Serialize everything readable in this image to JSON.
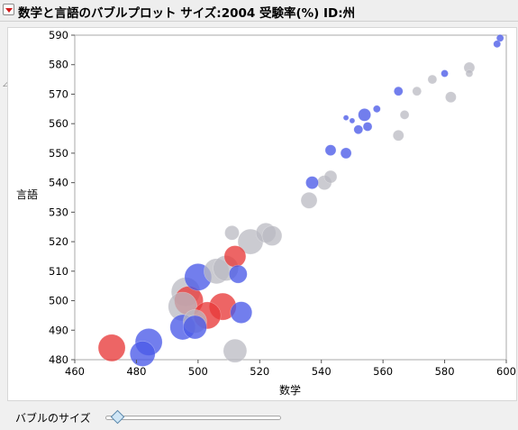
{
  "header": {
    "title": "数学と言語のバブルプロット サイズ:2004 受験率(%)  ID:州"
  },
  "controls": {
    "bubble_size_label": "バブルのサイズ",
    "bubble_size_level": 0.06
  },
  "colors": {
    "red": "#e83a3a",
    "blue": "#4a5ae8",
    "gray": "#b9b9c2"
  },
  "chart_data": {
    "type": "scatter",
    "title": "数学と言語のバブルプロット サイズ:2004 受験率(%)  ID:州",
    "xlabel": "数学",
    "ylabel": "言語",
    "xlim": [
      460,
      600
    ],
    "ylim": [
      480,
      590
    ],
    "xticks": [
      460,
      480,
      500,
      520,
      540,
      560,
      580,
      600
    ],
    "yticks": [
      480,
      490,
      500,
      510,
      520,
      530,
      540,
      550,
      560,
      570,
      580,
      590
    ],
    "grid": false,
    "size_variable": "2004 受験率(%)",
    "points": [
      {
        "x": 598,
        "y": 589,
        "size": 4,
        "color": "blue"
      },
      {
        "x": 597,
        "y": 587,
        "size": 4,
        "color": "blue"
      },
      {
        "x": 588,
        "y": 579,
        "size": 6,
        "color": "gray"
      },
      {
        "x": 588,
        "y": 577,
        "size": 4,
        "color": "gray"
      },
      {
        "x": 580,
        "y": 577,
        "size": 4,
        "color": "blue"
      },
      {
        "x": 576,
        "y": 575,
        "size": 5,
        "color": "gray"
      },
      {
        "x": 582,
        "y": 569,
        "size": 6,
        "color": "gray"
      },
      {
        "x": 571,
        "y": 571,
        "size": 5,
        "color": "gray"
      },
      {
        "x": 565,
        "y": 571,
        "size": 5,
        "color": "blue"
      },
      {
        "x": 567,
        "y": 563,
        "size": 5,
        "color": "gray"
      },
      {
        "x": 558,
        "y": 565,
        "size": 4,
        "color": "blue"
      },
      {
        "x": 554,
        "y": 563,
        "size": 7,
        "color": "blue"
      },
      {
        "x": 548,
        "y": 562,
        "size": 3,
        "color": "blue"
      },
      {
        "x": 550,
        "y": 561,
        "size": 3,
        "color": "blue"
      },
      {
        "x": 552,
        "y": 558,
        "size": 5,
        "color": "blue"
      },
      {
        "x": 555,
        "y": 559,
        "size": 5,
        "color": "blue"
      },
      {
        "x": 565,
        "y": 556,
        "size": 6,
        "color": "gray"
      },
      {
        "x": 543,
        "y": 551,
        "size": 6,
        "color": "blue"
      },
      {
        "x": 548,
        "y": 550,
        "size": 6,
        "color": "blue"
      },
      {
        "x": 543,
        "y": 542,
        "size": 7,
        "color": "gray"
      },
      {
        "x": 537,
        "y": 540,
        "size": 7,
        "color": "blue"
      },
      {
        "x": 541,
        "y": 540,
        "size": 8,
        "color": "gray"
      },
      {
        "x": 536,
        "y": 534,
        "size": 9,
        "color": "gray"
      },
      {
        "x": 511,
        "y": 523,
        "size": 8,
        "color": "gray"
      },
      {
        "x": 522,
        "y": 523,
        "size": 11,
        "color": "gray"
      },
      {
        "x": 524,
        "y": 522,
        "size": 11,
        "color": "gray"
      },
      {
        "x": 517,
        "y": 520,
        "size": 14,
        "color": "gray"
      },
      {
        "x": 512,
        "y": 515,
        "size": 12,
        "color": "red"
      },
      {
        "x": 506,
        "y": 510,
        "size": 14,
        "color": "gray"
      },
      {
        "x": 509,
        "y": 511,
        "size": 14,
        "color": "gray"
      },
      {
        "x": 513,
        "y": 509,
        "size": 10,
        "color": "blue"
      },
      {
        "x": 500,
        "y": 508,
        "size": 15,
        "color": "blue"
      },
      {
        "x": 496,
        "y": 503,
        "size": 16,
        "color": "gray"
      },
      {
        "x": 497,
        "y": 500,
        "size": 16,
        "color": "red"
      },
      {
        "x": 495,
        "y": 498,
        "size": 16,
        "color": "gray"
      },
      {
        "x": 508,
        "y": 498,
        "size": 15,
        "color": "red"
      },
      {
        "x": 503,
        "y": 495,
        "size": 15,
        "color": "red"
      },
      {
        "x": 514,
        "y": 496,
        "size": 12,
        "color": "blue"
      },
      {
        "x": 499,
        "y": 493,
        "size": 13,
        "color": "gray"
      },
      {
        "x": 499,
        "y": 491,
        "size": 13,
        "color": "blue"
      },
      {
        "x": 495,
        "y": 491,
        "size": 14,
        "color": "blue"
      },
      {
        "x": 484,
        "y": 486,
        "size": 15,
        "color": "blue"
      },
      {
        "x": 472,
        "y": 484,
        "size": 15,
        "color": "red"
      },
      {
        "x": 482,
        "y": 482,
        "size": 14,
        "color": "blue"
      },
      {
        "x": 512,
        "y": 483,
        "size": 13,
        "color": "gray"
      }
    ]
  }
}
